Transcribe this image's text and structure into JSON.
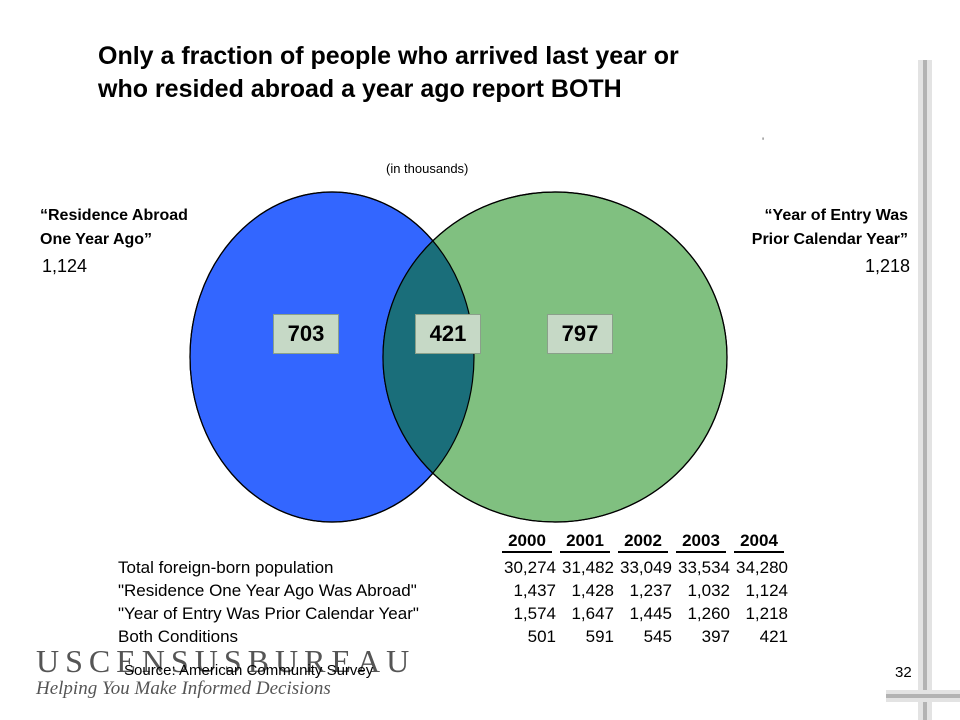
{
  "title": {
    "line1": "Only a fraction of people who arrived last year or",
    "line2": "who resided abroad a year ago report BOTH"
  },
  "corner_mark": "'",
  "units_label": "(in thousands)",
  "venn": {
    "left_label_line1": "“Residence Abroad",
    "left_label_line2": "One Year Ago”",
    "left_total": "1,124",
    "right_label_line1": "“Year of Entry Was",
    "right_label_line2": "Prior Calendar Year”",
    "right_total": "1,218",
    "left_only": "703",
    "both": "421",
    "right_only": "797",
    "colors": {
      "left": "#3366ff",
      "right": "#80c080",
      "overlap": "#1a6e7a",
      "box": "#c6d9c6"
    }
  },
  "table": {
    "years": [
      "2000",
      "2001",
      "2002",
      "2003",
      "2004"
    ],
    "rows": [
      {
        "label": "Total foreign-born population",
        "values": [
          "30,274",
          "31,482",
          "33,049",
          "33,534",
          "34,280"
        ]
      },
      {
        "label": "\"Residence One Year Ago Was Abroad\"",
        "values": [
          "1,437",
          "1,428",
          "1,237",
          "1,032",
          "1,124"
        ]
      },
      {
        "label": "\"Year of Entry Was Prior Calendar Year\"",
        "values": [
          "1,574",
          "1,647",
          "1,445",
          "1,260",
          "1,218"
        ]
      },
      {
        "label": "Both Conditions",
        "values": [
          "501",
          "591",
          "545",
          "397",
          "421"
        ]
      }
    ]
  },
  "footer": {
    "bureau": "USCENSUSBUREAU",
    "tagline": "Helping You Make Informed Decisions",
    "source": "Source:  American Community Survey",
    "page_number": "32"
  }
}
